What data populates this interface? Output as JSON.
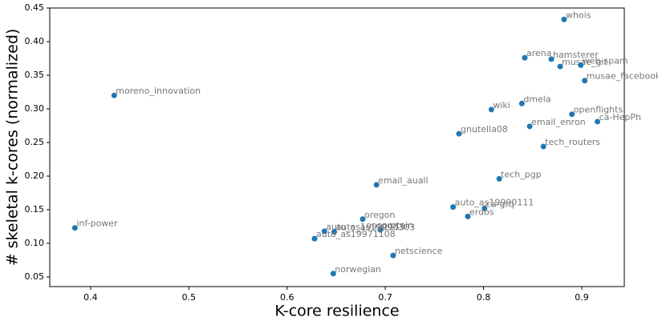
{
  "chart_data": {
    "type": "scatter",
    "xlabel": "K-core resilience",
    "ylabel": "# skeletal k-cores (normalized)",
    "color": "#1f77b4",
    "labels": [
      "whois",
      "arena",
      "hamsterer",
      "musae_git",
      "web-spam",
      "musae_facebook",
      "moreno_innovation",
      "wiki",
      "dmela",
      "openflights",
      "ca-HepPh",
      "email_enron",
      "gnutella08",
      "tech_routers",
      "tech_pgp",
      "email_auall",
      "auto_as19990111",
      "ca-grq",
      "erdos",
      "oregon",
      "protein",
      "auto_as19991115",
      "auto_as19990303",
      "auto_as19971108",
      "netscience",
      "norwegian",
      "inf-power"
    ],
    "x": [
      0.882,
      0.842,
      0.869,
      0.878,
      0.899,
      0.903,
      0.424,
      0.808,
      0.839,
      0.89,
      0.916,
      0.847,
      0.775,
      0.861,
      0.816,
      0.691,
      0.769,
      0.801,
      0.784,
      0.677,
      0.695,
      0.638,
      0.648,
      0.628,
      0.708,
      0.647,
      0.384
    ],
    "values": [
      0.433,
      0.376,
      0.374,
      0.363,
      0.365,
      0.342,
      0.32,
      0.299,
      0.308,
      0.292,
      0.281,
      0.274,
      0.263,
      0.244,
      0.196,
      0.187,
      0.154,
      0.152,
      0.14,
      0.136,
      0.12,
      0.118,
      0.117,
      0.107,
      0.082,
      0.055,
      0.123
    ],
    "xlim": [
      0.3584,
      0.9433
    ],
    "ylim": [
      0.0357,
      0.45
    ],
    "xticks": [
      0.4,
      0.5,
      0.6,
      0.7,
      0.8,
      0.9
    ],
    "yticks": [
      {
        "value": 0.05,
        "label": "0.05"
      },
      {
        "value": 0.1,
        "label": "0.10"
      },
      {
        "value": 0.15,
        "label": "0.15"
      },
      {
        "value": 0.2,
        "label": "0.20"
      },
      {
        "value": 0.25,
        "label": "0.25"
      },
      {
        "value": 0.3,
        "label": "0.30"
      },
      {
        "value": 0.35,
        "label": "0.35"
      },
      {
        "value": 0.4,
        "label": "0.40"
      },
      {
        "value": 0.45,
        "label": "0.45"
      }
    ]
  }
}
